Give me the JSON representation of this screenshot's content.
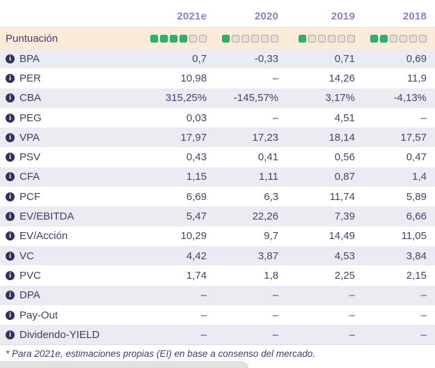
{
  "table": {
    "year_headers": [
      "2021e",
      "2020",
      "2019",
      "2018"
    ],
    "score_row": {
      "label": "Puntuación",
      "scores": [
        {
          "filled": 4,
          "total": 6
        },
        {
          "filled": 1,
          "total": 6
        },
        {
          "filled": 1,
          "total": 6
        },
        {
          "filled": 2,
          "total": 6
        }
      ]
    },
    "rows": [
      {
        "label": "BPA",
        "values": [
          "0,7",
          "-0,33",
          "0,71",
          "0,69"
        ]
      },
      {
        "label": "PER",
        "values": [
          "10,98",
          "–",
          "14,26",
          "11,9"
        ]
      },
      {
        "label": "CBA",
        "values": [
          "315,25%",
          "-145,57%",
          "3,17%",
          "-4,13%"
        ]
      },
      {
        "label": "PEG",
        "values": [
          "0,03",
          "–",
          "4,51",
          "–"
        ]
      },
      {
        "label": "VPA",
        "values": [
          "17,97",
          "17,23",
          "18,14",
          "17,57"
        ]
      },
      {
        "label": "PSV",
        "values": [
          "0,43",
          "0,41",
          "0,56",
          "0,47"
        ]
      },
      {
        "label": "CFA",
        "values": [
          "1,15",
          "1,11",
          "0,87",
          "1,4"
        ]
      },
      {
        "label": "PCF",
        "values": [
          "6,69",
          "6,3",
          "11,74",
          "5,89"
        ]
      },
      {
        "label": "EV/EBITDA",
        "values": [
          "5,47",
          "22,26",
          "7,39",
          "6,66"
        ]
      },
      {
        "label": "EV/Acción",
        "values": [
          "10,29",
          "9,7",
          "14,49",
          "11,05"
        ]
      },
      {
        "label": "VC",
        "values": [
          "4,42",
          "3,87",
          "4,53",
          "3,84"
        ]
      },
      {
        "label": "PVC",
        "values": [
          "1,74",
          "1,8",
          "2,25",
          "2,15"
        ]
      },
      {
        "label": "DPA",
        "values": [
          "–",
          "–",
          "–",
          "–"
        ]
      },
      {
        "label": "Pay-Out",
        "values": [
          "–",
          "–",
          "–",
          "–"
        ]
      },
      {
        "label": "Dividendo-YIELD",
        "values": [
          "–",
          "–",
          "–",
          "–"
        ]
      }
    ],
    "footnote": "* Para 2021e, estimaciones propias (EI) en base a consenso del mercado."
  },
  "colors": {
    "score_row_bg": "#fbecda",
    "alt_row_bg": "#ebebf2",
    "filled_square": "#2cb36e",
    "empty_square": "#e4dfd8",
    "year_header_text": "#8184c7",
    "body_text": "#3f3f6e",
    "info_icon_bg": "#30305c"
  }
}
